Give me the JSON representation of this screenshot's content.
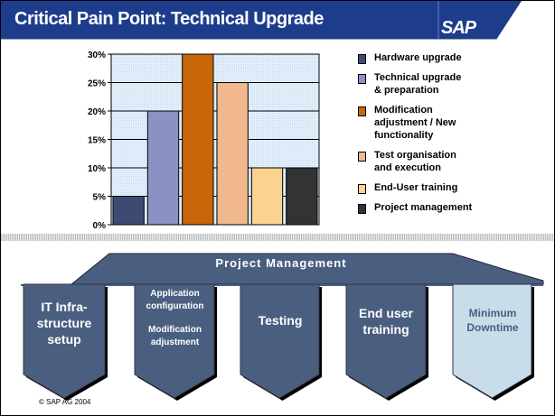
{
  "header": {
    "title": "Critical Pain Point: Technical Upgrade",
    "logo": "SAP"
  },
  "chart_data": {
    "type": "bar",
    "categories": [
      "Hardware upgrade",
      "Technical upgrade & preparation",
      "Modification adjustment / New functionality",
      "Test organisation and execution",
      "End-User training",
      "Project management"
    ],
    "values": [
      5,
      20,
      30,
      25,
      10,
      10
    ],
    "colors": [
      "#3d4a72",
      "#8a92c4",
      "#c8660a",
      "#f0b88c",
      "#fbd28e",
      "#333333"
    ],
    "yticks": [
      "0%",
      "5%",
      "10%",
      "15%",
      "20%",
      "25%",
      "30%"
    ],
    "ylim": [
      0,
      30
    ],
    "grid": true,
    "legend_placement": "right",
    "legend": [
      "Hardware upgrade",
      "Technical upgrade\n& preparation",
      "Modification\nadjustment / New\nfunctionality",
      "Test organisation\nand execution",
      "End-User training",
      "Project management"
    ]
  },
  "process": {
    "banner": "Project Management",
    "steps": [
      "IT Infra-\nstructure\nsetup",
      "Application\nconfiguration",
      "Modification\nadjustment",
      "Testing",
      "End user\ntraining",
      "Minimum\nDowntime"
    ]
  },
  "footer": {
    "copyright": "©  SAP AG 2004"
  }
}
